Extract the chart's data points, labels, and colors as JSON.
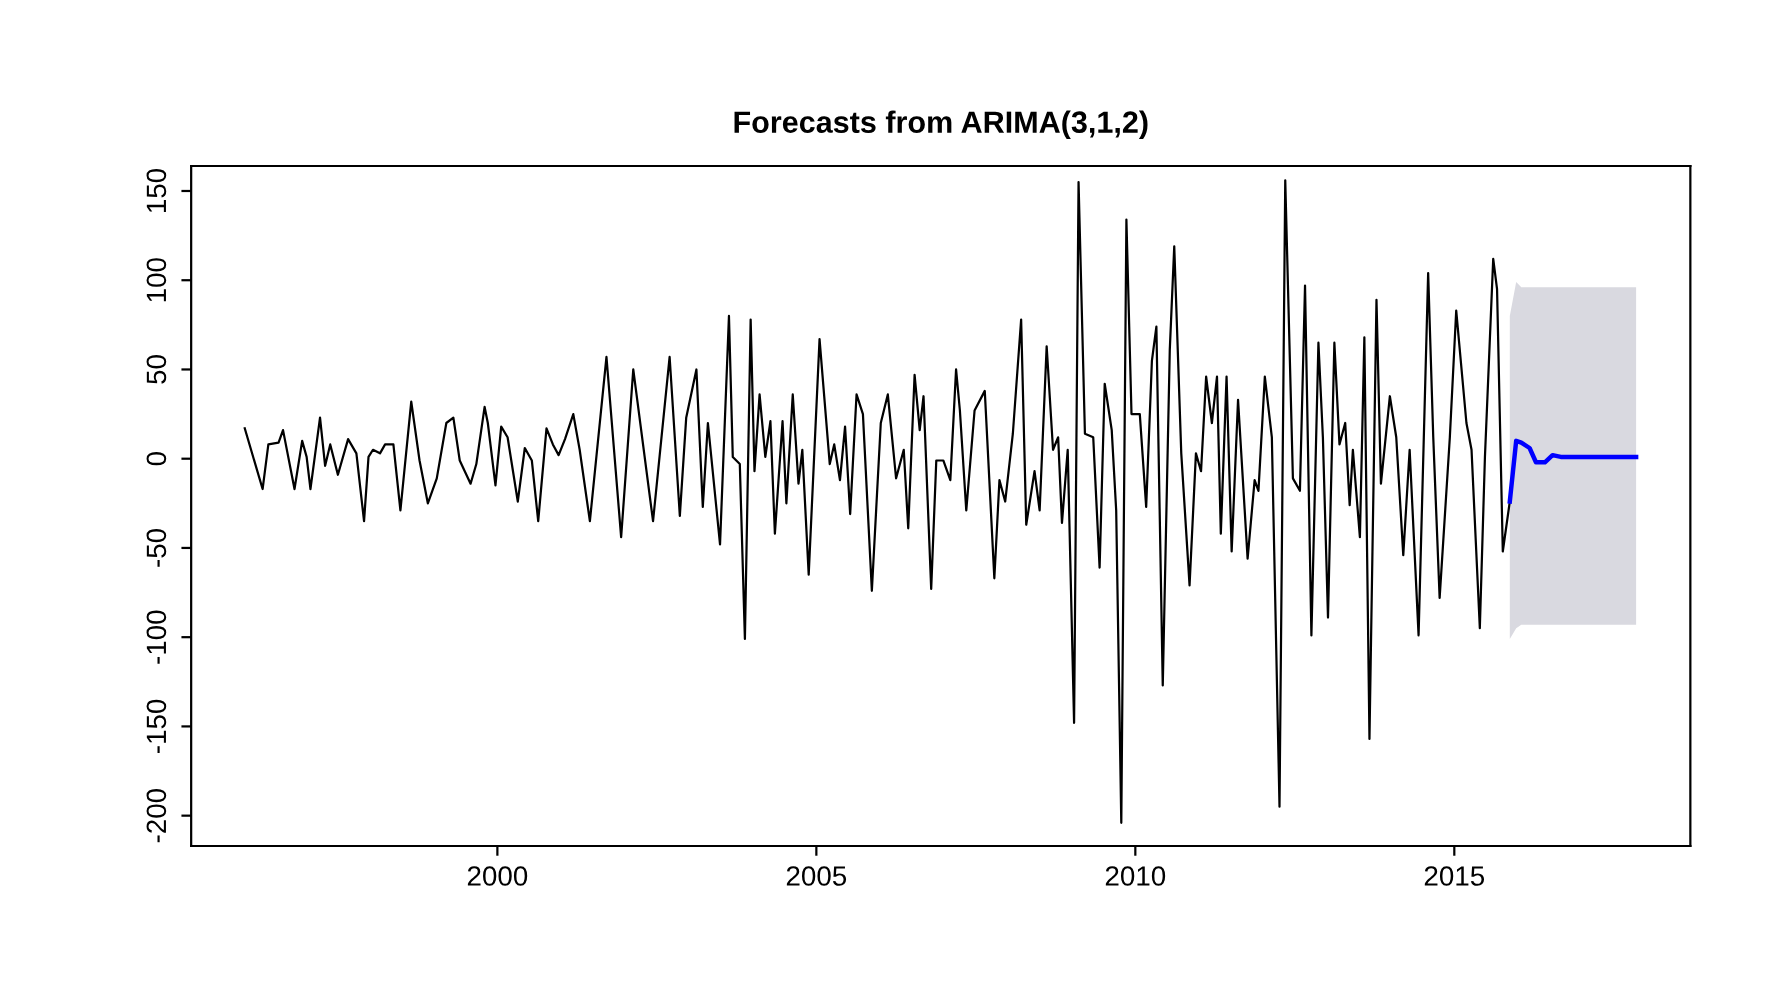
{
  "chart_data": {
    "type": "line",
    "title": "Forecasts from ARIMA(3,1,2)",
    "xlim": [
      1995.2,
      2018.7
    ],
    "xticks": [
      2000,
      2005,
      2010,
      2015
    ],
    "ylim": [
      -217,
      164
    ],
    "yticks": [
      -200,
      -150,
      -100,
      -50,
      0,
      50,
      100,
      150
    ],
    "grid": false,
    "series": [
      {
        "color": "#000000",
        "x": [
          1996.04,
          1996.32,
          1996.41,
          1996.57,
          1996.64,
          1996.82,
          1996.94,
          1997.01,
          1997.07,
          1997.22,
          1997.3,
          1997.38,
          1997.5,
          1997.66,
          1997.79,
          1997.91,
          1997.98,
          1998.05,
          1998.16,
          1998.24,
          1998.37,
          1998.48,
          1998.65,
          1998.78,
          1998.91,
          1999.05,
          1999.2,
          1999.31,
          1999.41,
          1999.58,
          1999.67,
          1999.8,
          1999.85,
          1999.97,
          2000.06,
          2000.16,
          2000.32,
          2000.43,
          2000.54,
          2000.64,
          2000.77,
          2000.87,
          2000.96,
          2001.06,
          2001.19,
          2001.29,
          2001.45,
          2001.71,
          2001.94,
          2002.13,
          2002.44,
          2002.7,
          2002.86,
          2002.96,
          2003.12,
          2003.22,
          2003.3,
          2003.49,
          2003.63,
          2003.69,
          2003.8,
          2003.88,
          2003.97,
          2004.03,
          2004.11,
          2004.2,
          2004.28,
          2004.35,
          2004.47,
          2004.53,
          2004.63,
          2004.72,
          2004.78,
          2004.88,
          2005.05,
          2005.21,
          2005.28,
          2005.37,
          2005.45,
          2005.53,
          2005.63,
          2005.73,
          2005.87,
          2006.01,
          2006.12,
          2006.25,
          2006.37,
          2006.44,
          2006.54,
          2006.62,
          2006.68,
          2006.8,
          2006.88,
          2006.99,
          2007.1,
          2007.19,
          2007.25,
          2007.35,
          2007.48,
          2007.64,
          2007.79,
          2007.87,
          2007.96,
          2008.08,
          2008.21,
          2008.29,
          2008.42,
          2008.5,
          2008.61,
          2008.71,
          2008.79,
          2008.85,
          2008.94,
          2009.04,
          2009.11,
          2009.21,
          2009.34,
          2009.44,
          2009.52,
          2009.63,
          2009.7,
          2009.78,
          2009.86,
          2009.94,
          2010.07,
          2010.17,
          2010.26,
          2010.33,
          2010.43,
          2010.54,
          2010.61,
          2010.72,
          2010.85,
          2010.95,
          2011.03,
          2011.11,
          2011.2,
          2011.28,
          2011.34,
          2011.43,
          2011.51,
          2011.61,
          2011.76,
          2011.87,
          2011.93,
          2012.03,
          2012.14,
          2012.26,
          2012.35,
          2012.47,
          2012.58,
          2012.66,
          2012.76,
          2012.87,
          2012.94,
          2013.02,
          2013.12,
          2013.2,
          2013.29,
          2013.36,
          2013.41,
          2013.52,
          2013.59,
          2013.67,
          2013.78,
          2013.85,
          2013.99,
          2014.09,
          2014.2,
          2014.3,
          2014.44,
          2014.59,
          2014.67,
          2014.77,
          2014.93,
          2015.03,
          2015.19,
          2015.27,
          2015.4,
          2015.48,
          2015.61,
          2015.67,
          2015.76,
          2015.87
        ],
        "values": [
          17,
          -17,
          8,
          9,
          16,
          -17,
          10,
          1,
          -17,
          23,
          -4,
          8,
          -9,
          11,
          3,
          -35,
          1,
          5,
          3,
          8,
          8,
          -29,
          32,
          -1,
          -25,
          -11,
          20,
          23,
          -1,
          -14,
          -3,
          29,
          20,
          -15,
          18,
          12,
          -24,
          6,
          -1,
          -35,
          17,
          8,
          2,
          11,
          25,
          5,
          -35,
          57,
          -44,
          50,
          -35,
          57,
          -32,
          23,
          50,
          -27,
          20,
          -48,
          80,
          1,
          -3,
          -101,
          78,
          -7,
          36,
          1,
          21,
          -42,
          21,
          -25,
          36,
          -14,
          5,
          -65,
          67,
          -3,
          8,
          -12,
          18,
          -31,
          36,
          25,
          -74,
          20,
          36,
          -11,
          5,
          -39,
          47,
          16,
          35,
          -73,
          -1,
          -1,
          -12,
          50,
          27,
          -29,
          27,
          38,
          -67,
          -12,
          -24,
          14,
          78,
          -37,
          -7,
          -29,
          63,
          5,
          12,
          -36,
          5,
          -148,
          155,
          14,
          12,
          -61,
          42,
          16,
          -29,
          -204,
          134,
          25,
          25,
          -27,
          55,
          74,
          -127,
          61,
          119,
          3,
          -71,
          3,
          -7,
          46,
          20,
          46,
          -42,
          46,
          -52,
          33,
          -56,
          -12,
          -18,
          46,
          12,
          -195,
          156,
          -11,
          -18,
          97,
          -99,
          65,
          12,
          -89,
          65,
          8,
          20,
          -26,
          5,
          -44,
          68,
          -157,
          89,
          -14,
          35,
          12,
          -54,
          5,
          -99,
          104,
          12,
          -78,
          12,
          83,
          20,
          5,
          -95,
          1,
          112,
          95,
          -52,
          -24
        ]
      },
      {
        "color": "#0000ff",
        "x": [
          2015.87,
          2015.97,
          2016.05,
          2016.18,
          2016.28,
          2016.42,
          2016.54,
          2016.67,
          2017.85
        ],
        "values": [
          -24,
          10,
          9,
          6,
          -2,
          -2,
          2,
          1,
          1
        ],
        "lower": [
          -101,
          -95,
          -93,
          -93,
          -93,
          -93,
          -93,
          -93,
          -93
        ],
        "upper": [
          80,
          99,
          96,
          96,
          96,
          96,
          96,
          96,
          96
        ]
      }
    ]
  }
}
